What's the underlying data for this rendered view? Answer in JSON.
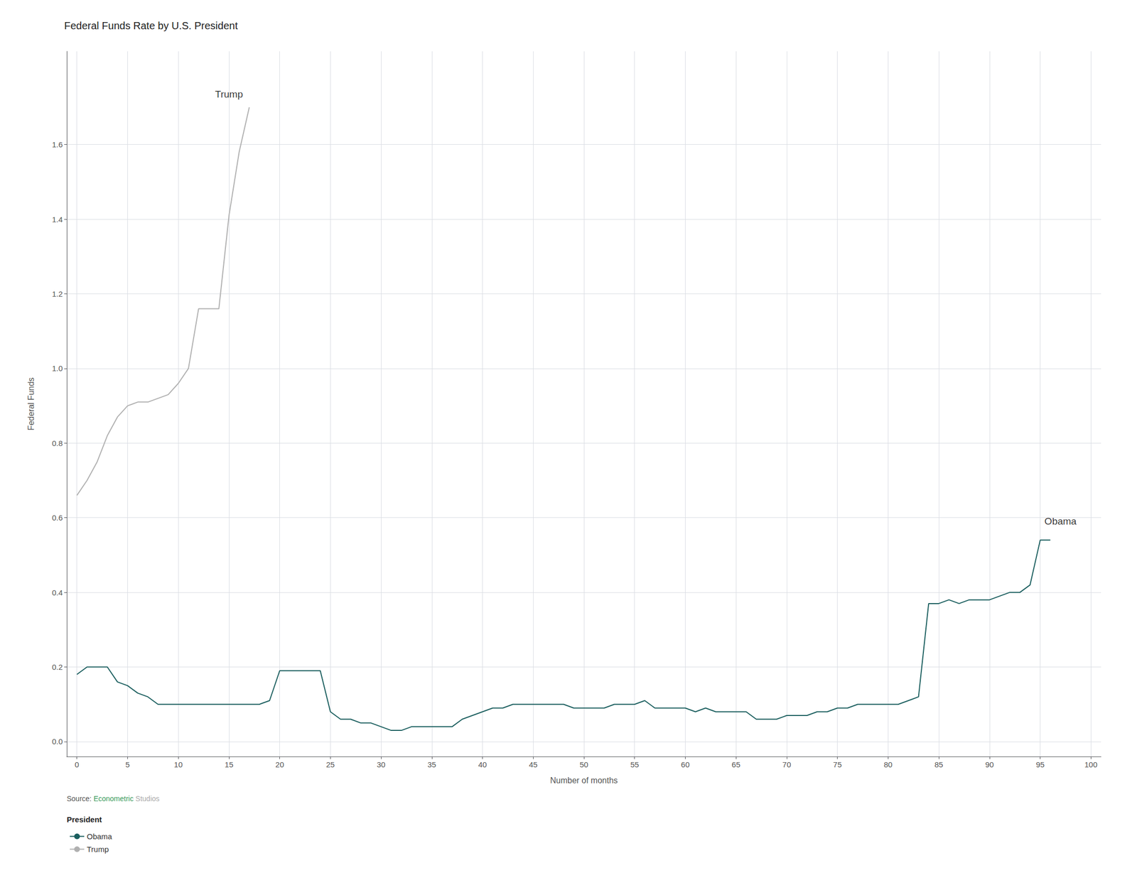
{
  "chart_data": {
    "type": "line",
    "title": "Federal Funds Rate by U.S. President",
    "xlabel": "Number of months",
    "ylabel": "Federal Funds",
    "series": [
      {
        "name": "Trump",
        "color": "#b0b0b0",
        "x": [
          0,
          1,
          2,
          3,
          4,
          5,
          6,
          7,
          8,
          9,
          10,
          11,
          12,
          13,
          14,
          15,
          16,
          17
        ],
        "values": [
          0.66,
          0.7,
          0.75,
          0.82,
          0.87,
          0.9,
          0.91,
          0.91,
          0.92,
          0.93,
          0.96,
          1.0,
          1.16,
          1.16,
          1.16,
          1.41,
          1.58,
          1.7
        ]
      },
      {
        "name": "Obama",
        "color": "#1a5e5e",
        "x": [
          0,
          1,
          2,
          3,
          4,
          5,
          6,
          7,
          8,
          9,
          10,
          11,
          12,
          13,
          14,
          15,
          16,
          17,
          18,
          19,
          20,
          21,
          22,
          23,
          24,
          25,
          26,
          27,
          28,
          29,
          30,
          31,
          32,
          33,
          34,
          35,
          36,
          37,
          38,
          39,
          40,
          41,
          42,
          43,
          44,
          45,
          46,
          47,
          48,
          49,
          50,
          51,
          52,
          53,
          54,
          55,
          56,
          57,
          58,
          59,
          60,
          61,
          62,
          63,
          64,
          65,
          66,
          67,
          68,
          69,
          70,
          71,
          72,
          73,
          74,
          75,
          76,
          77,
          78,
          79,
          80,
          81,
          82,
          83,
          84,
          85,
          86,
          87,
          88,
          89,
          90,
          91,
          92,
          93,
          94,
          95,
          96
        ],
        "values": [
          0.18,
          0.2,
          0.2,
          0.2,
          0.16,
          0.15,
          0.13,
          0.12,
          0.1,
          0.1,
          0.1,
          0.1,
          0.1,
          0.1,
          0.1,
          0.1,
          0.1,
          0.1,
          0.1,
          0.11,
          0.19,
          0.19,
          0.19,
          0.19,
          0.19,
          0.08,
          0.06,
          0.06,
          0.05,
          0.05,
          0.04,
          0.03,
          0.03,
          0.04,
          0.04,
          0.04,
          0.04,
          0.04,
          0.06,
          0.07,
          0.08,
          0.09,
          0.09,
          0.1,
          0.1,
          0.1,
          0.1,
          0.1,
          0.1,
          0.09,
          0.09,
          0.09,
          0.09,
          0.1,
          0.1,
          0.1,
          0.11,
          0.09,
          0.09,
          0.09,
          0.09,
          0.08,
          0.09,
          0.08,
          0.08,
          0.08,
          0.08,
          0.06,
          0.06,
          0.06,
          0.07,
          0.07,
          0.07,
          0.08,
          0.08,
          0.09,
          0.09,
          0.1,
          0.1,
          0.1,
          0.1,
          0.1,
          0.11,
          0.12,
          0.37,
          0.37,
          0.38,
          0.37,
          0.38,
          0.38,
          0.38,
          0.39,
          0.4,
          0.4,
          0.42,
          0.54,
          0.54
        ]
      }
    ],
    "xlim": [
      -1,
      101
    ],
    "xticks": [
      0,
      5,
      10,
      15,
      20,
      25,
      30,
      35,
      40,
      45,
      50,
      55,
      60,
      65,
      70,
      75,
      80,
      85,
      90,
      95,
      100
    ],
    "ylim": [
      -0.04,
      1.85
    ],
    "yticks": [
      {
        "value": 0.0,
        "label": "0.0"
      },
      0.2,
      0.4,
      0.6,
      0.8,
      {
        "value": 1.0,
        "label": "1.0"
      },
      1.2,
      1.4,
      1.6
    ],
    "grid": true,
    "legend": "lower left",
    "legend_title": "President",
    "annotations": [
      {
        "text": "Trump",
        "x": 15,
        "y": 1.72
      },
      {
        "text": "Obama",
        "x": 97,
        "y": 0.575
      }
    ],
    "source": [
      {
        "text": "Source: ",
        "color": "#555555"
      },
      {
        "text": "Econometric",
        "color": "#3a9a5c"
      },
      {
        "text": " Studios",
        "color": "#aaaaaa"
      }
    ]
  }
}
